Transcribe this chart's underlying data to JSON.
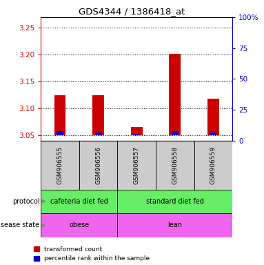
{
  "title": "GDS4344 / 1386418_at",
  "samples": [
    "GSM906555",
    "GSM906556",
    "GSM906557",
    "GSM906558",
    "GSM906559"
  ],
  "red_values": [
    3.125,
    3.125,
    3.065,
    3.202,
    3.118
  ],
  "blue_values": [
    3.057,
    3.055,
    3.052,
    3.058,
    3.055
  ],
  "ylim_left": [
    3.04,
    3.27
  ],
  "ylim_right": [
    0,
    100
  ],
  "yticks_left": [
    3.05,
    3.1,
    3.15,
    3.2,
    3.25
  ],
  "yticks_right": [
    0,
    25,
    50,
    75,
    100
  ],
  "ytick_labels_right": [
    "0",
    "25",
    "50",
    "75",
    "100%"
  ],
  "baseline": 3.05,
  "protocol_color": "#66ee66",
  "disease_color": "#ee66ee",
  "label_area_color": "#cccccc",
  "red_color": "#cc0000",
  "blue_color": "#0000cc",
  "left_axis_color": "#cc0000",
  "right_axis_color": "#0000cc",
  "bar_width": 0.3,
  "blue_bar_width": 0.18
}
